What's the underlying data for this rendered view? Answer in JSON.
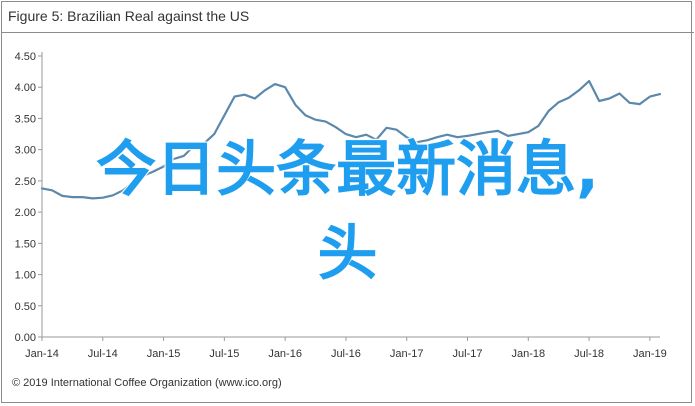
{
  "header": {
    "title": "Figure 5: Brazilian Real against the US"
  },
  "footer": {
    "source": "© 2019 International Coffee Organization",
    "link": "(www.ico.org)"
  },
  "overlay": {
    "line1": "今日头条最新消息,",
    "line2": "头"
  },
  "colors": {
    "series": "#5b88ab",
    "axis": "#9a9a9a",
    "text": "#333333",
    "overlay": "#1f9ef0"
  },
  "chart_data": {
    "type": "line",
    "ylim": [
      0,
      4.5
    ],
    "y_ticks": [
      "0.00",
      "0.50",
      "1.00",
      "1.50",
      "2.00",
      "2.50",
      "3.00",
      "3.50",
      "4.00",
      "4.50"
    ],
    "x_ticks": [
      "Jan-14",
      "Jul-14",
      "Jan-15",
      "Jul-15",
      "Jan-16",
      "Jul-16",
      "Jan-17",
      "Jul-17",
      "Jan-18",
      "Jul-18",
      "Jan-19"
    ],
    "grid": false,
    "series": [
      {
        "values": [
          2.38,
          2.35,
          2.26,
          2.24,
          2.24,
          2.22,
          2.23,
          2.27,
          2.35,
          2.48,
          2.58,
          2.65,
          2.73,
          2.85,
          2.9,
          3.06,
          3.1,
          3.25,
          3.55,
          3.85,
          3.88,
          3.82,
          3.95,
          4.05,
          4.0,
          3.72,
          3.55,
          3.48,
          3.45,
          3.36,
          3.25,
          3.2,
          3.24,
          3.16,
          3.35,
          3.32,
          3.2,
          3.12,
          3.15,
          3.2,
          3.24,
          3.2,
          3.22,
          3.25,
          3.28,
          3.3,
          3.22,
          3.25,
          3.28,
          3.38,
          3.62,
          3.76,
          3.83,
          3.95,
          4.1,
          3.78,
          3.82,
          3.9,
          3.75,
          3.73,
          3.85,
          3.89
        ]
      }
    ]
  }
}
